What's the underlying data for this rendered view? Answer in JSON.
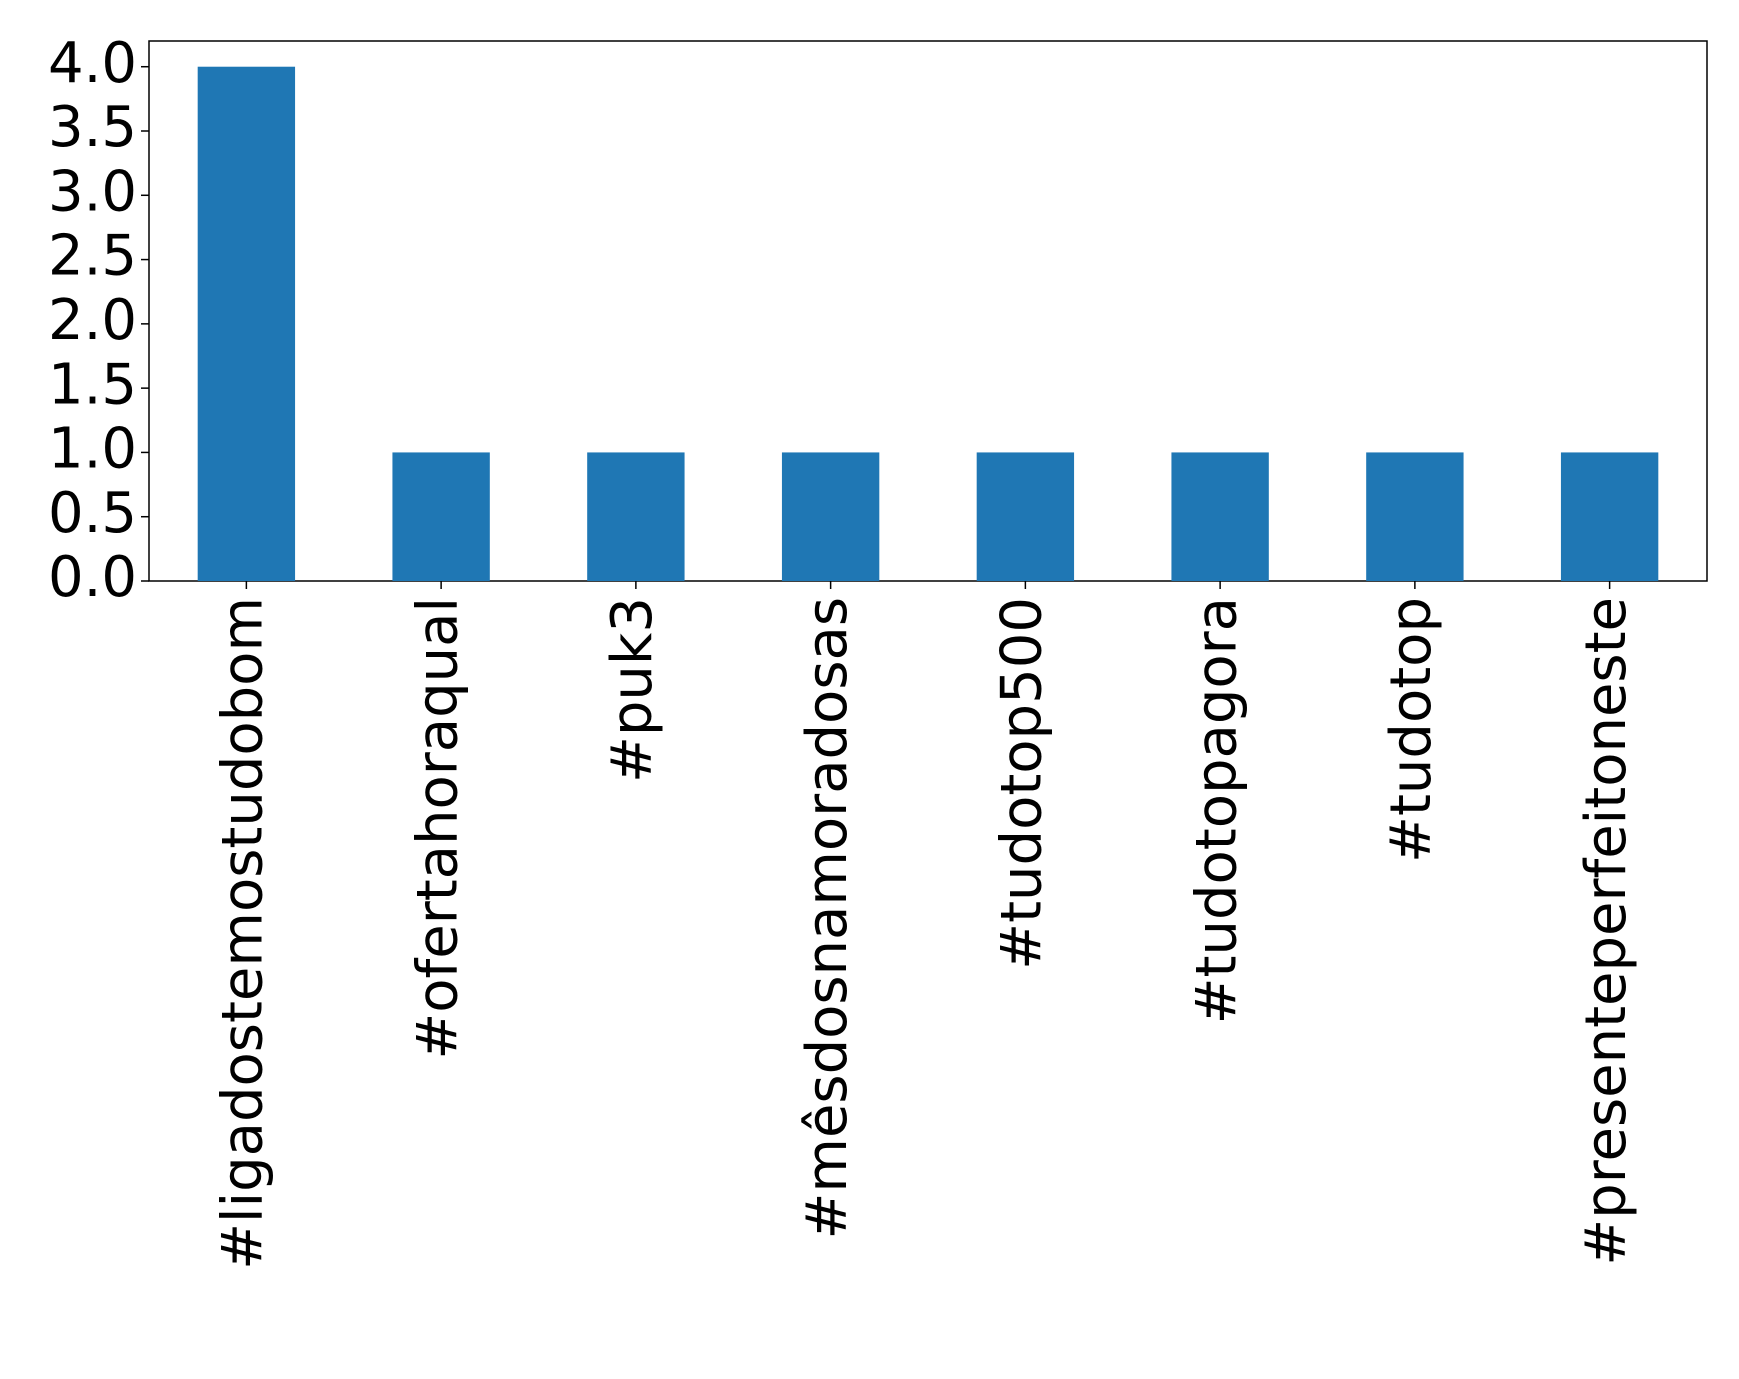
{
  "chart_data": {
    "type": "bar",
    "categories": [
      "#ligadostemostudobom",
      "#ofertahoraqual",
      "#puk3",
      "#mêsdosnamoradosas",
      "#tudotop500",
      "#tudotopagora",
      "#tudotop",
      "#presenteperfeitoneste"
    ],
    "values": [
      4,
      1,
      1,
      1,
      1,
      1,
      1,
      1
    ],
    "color": "#1f77b4",
    "ylim": [
      0,
      4.2
    ],
    "yticks": [
      {
        "value": 0,
        "label": "0.0"
      },
      {
        "value": 0.5,
        "label": "0.5"
      },
      {
        "value": 1,
        "label": "1.0"
      },
      {
        "value": 1.5,
        "label": "1.5"
      },
      {
        "value": 2,
        "label": "2.0"
      },
      {
        "value": 2.5,
        "label": "2.5"
      },
      {
        "value": 3,
        "label": "3.0"
      },
      {
        "value": 3.5,
        "label": "3.5"
      },
      {
        "value": 4,
        "label": "4.0"
      }
    ],
    "grid": false
  }
}
